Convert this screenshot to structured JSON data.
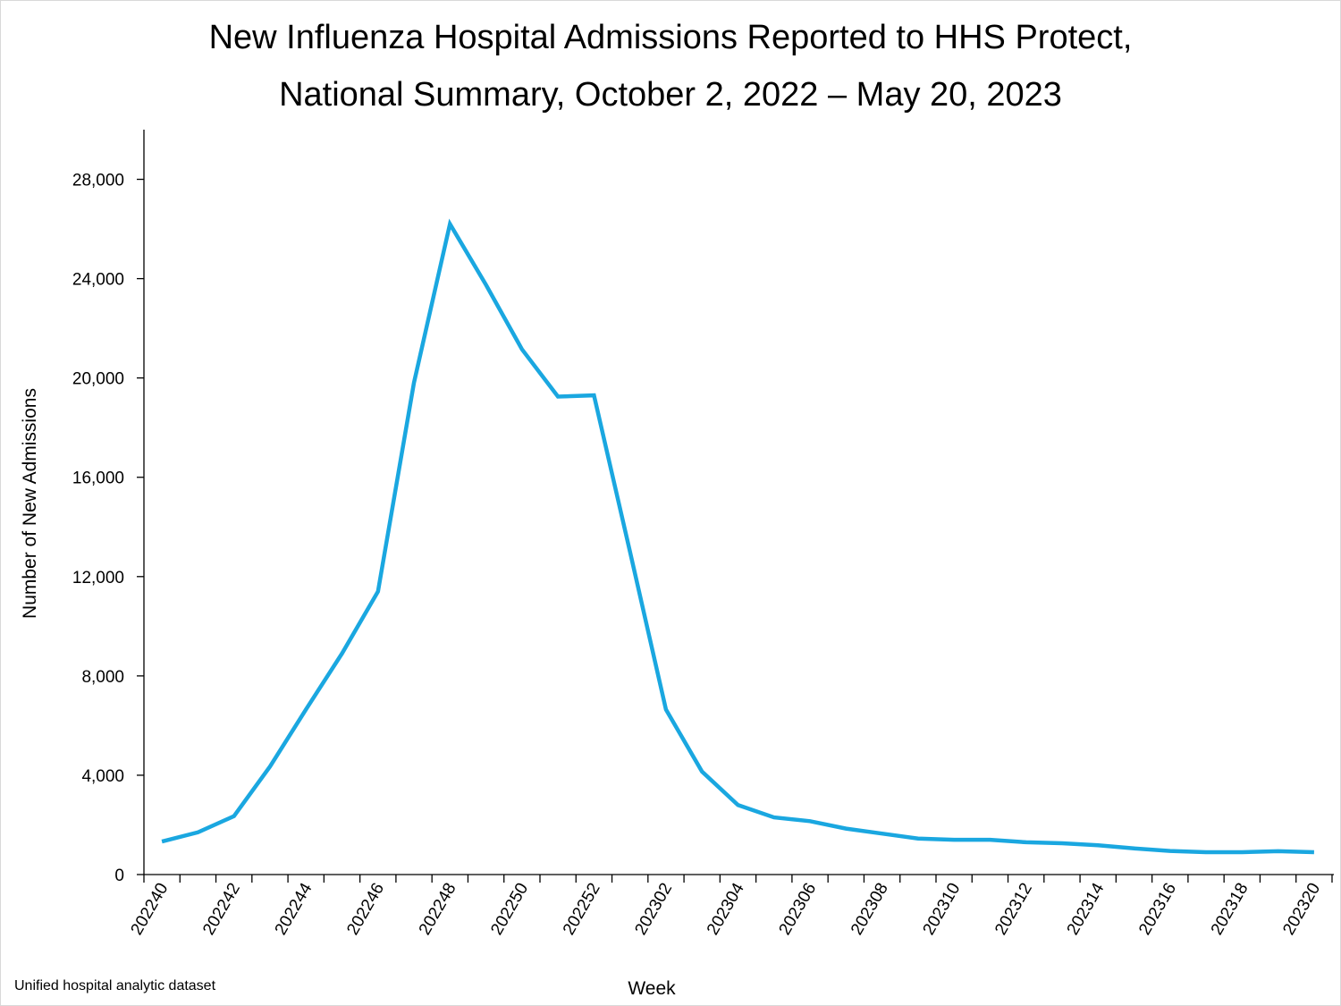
{
  "chart_data": {
    "type": "line",
    "title_line1": "New Influenza Hospital Admissions Reported to HHS Protect,",
    "title_line2": "National Summary, October 2, 2022 – May 20, 2023",
    "xlabel": "Week",
    "ylabel": "Number of New Admissions",
    "ylim": [
      0,
      30000
    ],
    "y_ticks": [
      0,
      4000,
      8000,
      12000,
      16000,
      20000,
      24000,
      28000
    ],
    "y_tick_labels": [
      "0",
      "4,000",
      "8,000",
      "12,000",
      "16,000",
      "20,000",
      "24,000",
      "28,000"
    ],
    "x_tick_labels": [
      "202240",
      "202242",
      "202244",
      "202246",
      "202248",
      "202250",
      "202252",
      "202302",
      "202304",
      "202306",
      "202308",
      "202310",
      "202312",
      "202314",
      "202316",
      "202318",
      "202320"
    ],
    "x": [
      "202240",
      "202241",
      "202242",
      "202243",
      "202244",
      "202245",
      "202246",
      "202247",
      "202248",
      "202249",
      "202250",
      "202251",
      "202252",
      "202301",
      "202302",
      "202303",
      "202304",
      "202305",
      "202306",
      "202307",
      "202308",
      "202309",
      "202310",
      "202311",
      "202312",
      "202313",
      "202314",
      "202315",
      "202316",
      "202317",
      "202318",
      "202319",
      "202320"
    ],
    "series": [
      {
        "color": "#1aa7e0",
        "values": [
          1330,
          1700,
          2350,
          4350,
          6650,
          8900,
          11400,
          19800,
          26200,
          23750,
          21150,
          19250,
          19300,
          13000,
          6650,
          4150,
          2800,
          2300,
          2150,
          1850,
          1650,
          1450,
          1400,
          1400,
          1300,
          1260,
          1180,
          1050,
          950,
          900,
          900,
          940,
          900
        ]
      }
    ],
    "grid": false,
    "legend": "none"
  },
  "footer": {
    "source": "Unified hospital analytic dataset"
  }
}
